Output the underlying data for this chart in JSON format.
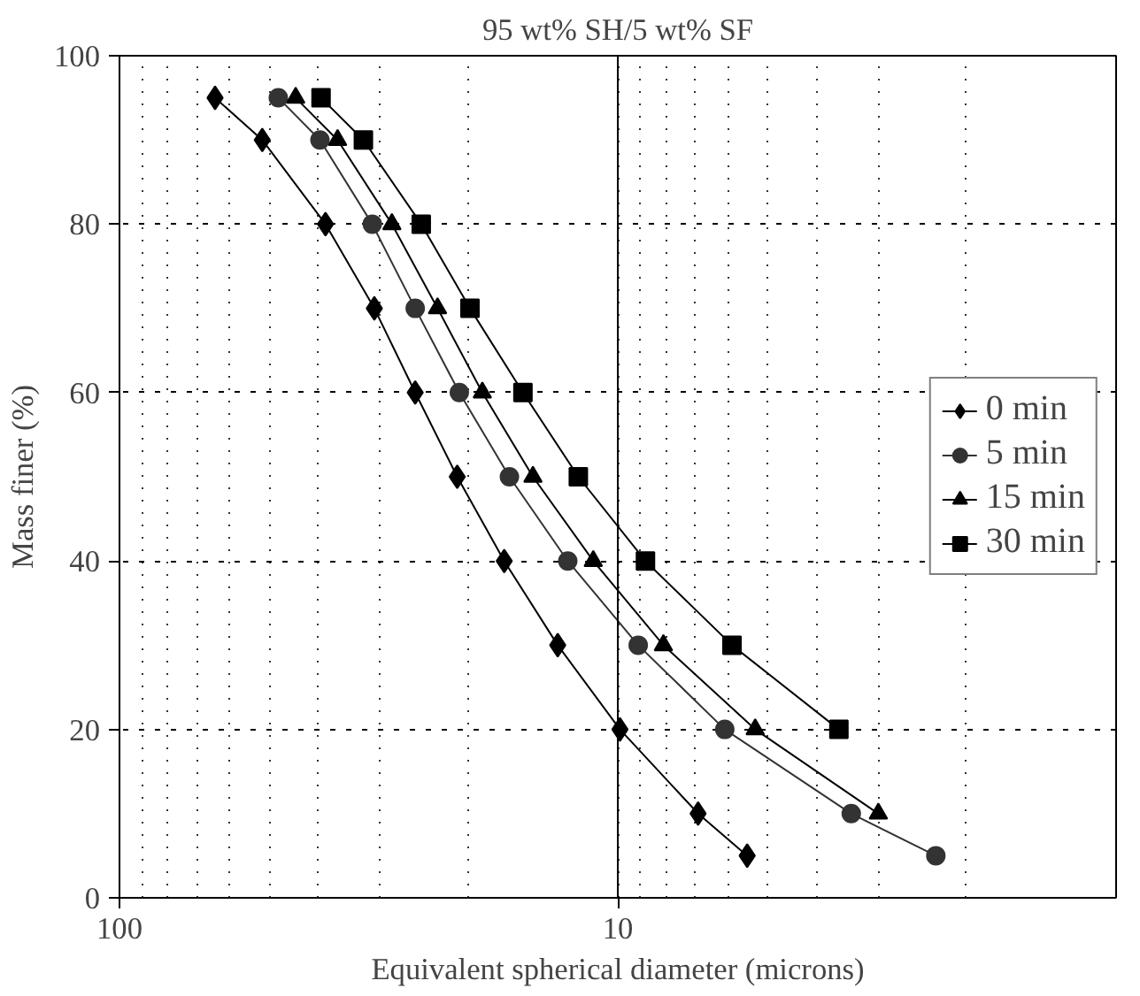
{
  "chart_data": {
    "type": "line",
    "title": "95 wt% SH/5 wt% SF",
    "xlabel": "Equivalent spherical diameter (microns)",
    "ylabel": "Mass finer (%)",
    "log": "x",
    "xlim": [
      100,
      1
    ],
    "xticks": [
      100,
      10
    ],
    "ylim": [
      0,
      100
    ],
    "yticks": [
      0,
      20,
      40,
      60,
      80,
      100
    ],
    "grid": true,
    "legend": "right",
    "ref_lines": [
      {
        "axis": "x",
        "value": 10,
        "color": "#000000",
        "line_style": "solid"
      }
    ],
    "series": [
      {
        "name": "0 min",
        "color": "#000000",
        "marker": "diamond",
        "x": [
          64.3,
          51.7,
          38.6,
          30.8,
          25.5,
          21.0,
          16.9,
          13.2,
          9.9,
          6.9,
          5.5
        ],
        "values": [
          95,
          90,
          80,
          70,
          60,
          50,
          40,
          30,
          20,
          10,
          5
        ]
      },
      {
        "name": "5 min",
        "color": "#333333",
        "marker": "circle",
        "x": [
          48.0,
          39.6,
          31.1,
          25.5,
          20.8,
          16.5,
          12.6,
          9.1,
          6.1,
          3.4,
          2.3
        ],
        "values": [
          95,
          90,
          80,
          70,
          60,
          50,
          40,
          30,
          20,
          10,
          5
        ]
      },
      {
        "name": "15 min",
        "color": "#000000",
        "marker": "triangle",
        "x": [
          44.3,
          36.5,
          28.4,
          23.0,
          18.7,
          14.8,
          11.2,
          8.1,
          5.3,
          3.0
        ],
        "values": [
          95,
          90,
          80,
          70,
          60,
          50,
          40,
          30,
          20,
          10
        ]
      },
      {
        "name": "30 min",
        "color": "#000000",
        "marker": "square",
        "x": [
          39.4,
          32.4,
          24.8,
          19.8,
          15.5,
          12.0,
          8.8,
          5.9,
          3.6
        ],
        "values": [
          95,
          90,
          80,
          70,
          60,
          50,
          40,
          30,
          20
        ]
      }
    ]
  }
}
